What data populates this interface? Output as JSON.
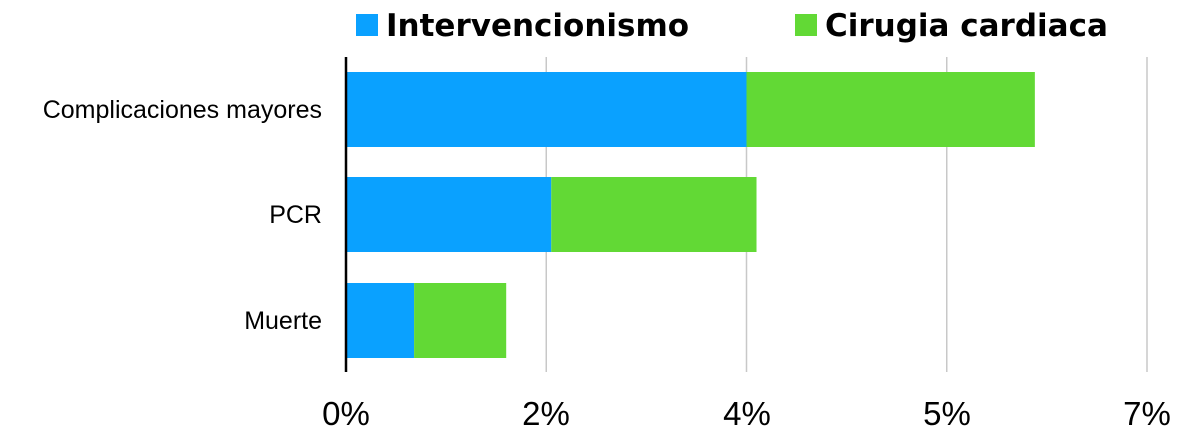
{
  "chart_data": {
    "type": "bar",
    "orientation": "horizontal",
    "stacked": true,
    "categories": [
      "Complicaciones mayores",
      "PCR",
      "Muerte"
    ],
    "series": [
      {
        "name": "Intervencionismo",
        "color": "#0aa1ff",
        "values": [
          4.0,
          2.05,
          0.68
        ]
      },
      {
        "name": "Cirugia cardiaca",
        "color": "#62d935",
        "values": [
          2.88,
          2.05,
          0.92
        ]
      }
    ],
    "x_ticks": [
      "0%",
      "2%",
      "4%",
      "5%",
      "7%"
    ],
    "xlim": [
      0,
      8
    ],
    "grid": true,
    "legend_position": "top"
  }
}
